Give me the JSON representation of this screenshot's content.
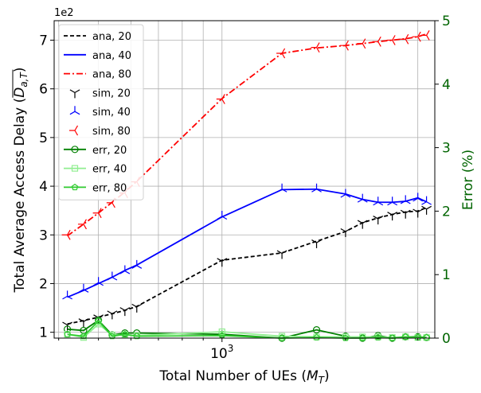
{
  "chart_data": {
    "type": "line",
    "xlabel": "Total Number of UEs (",
    "xlabel_sym": "M",
    "xlabel_sub": "T",
    "xlabel_end": ")",
    "ylabel": "Total Average Access Delay (",
    "ylabel_sym": "D",
    "ylabel_sub": "a,T",
    "ylabel_end": ")",
    "ylabel_right": "Error (%)",
    "y_offset_text": "1e2",
    "x_scale": "log",
    "xlim": [
      390,
      3300
    ],
    "ylim": [
      0.88,
      7.4
    ],
    "ylim_right": [
      0,
      5
    ],
    "x_tick_labels": [
      {
        "value": 1000,
        "base": "10",
        "exp": "3"
      }
    ],
    "y_ticks": [
      1,
      2,
      3,
      4,
      5,
      6,
      7
    ],
    "y_tick_labels": [
      "1",
      "2",
      "3",
      "4",
      "5",
      "6",
      "7"
    ],
    "y_right_ticks": [
      0,
      1,
      2,
      3,
      4,
      5
    ],
    "y_right_tick_labels": [
      "0",
      "1",
      "2",
      "3",
      "4",
      "5"
    ],
    "grid": true,
    "legend_position": "top-left",
    "x": [
      420,
      460,
      500,
      540,
      580,
      620,
      1000,
      1400,
      1700,
      2000,
      2200,
      2400,
      2600,
      2800,
      3000,
      3150
    ],
    "series": [
      {
        "name": "ana, 20",
        "axis": "left",
        "color": "#000000",
        "style": "dashed",
        "marker": "none",
        "values": [
          1.17,
          1.24,
          1.31,
          1.38,
          1.45,
          1.53,
          2.48,
          2.63,
          2.87,
          3.07,
          3.25,
          3.35,
          3.42,
          3.47,
          3.49,
          3.56
        ]
      },
      {
        "name": "ana, 40",
        "axis": "left",
        "color": "#0000ff",
        "style": "solid",
        "marker": "none",
        "values": [
          1.72,
          1.86,
          2.0,
          2.13,
          2.27,
          2.38,
          3.37,
          3.93,
          3.94,
          3.84,
          3.73,
          3.67,
          3.67,
          3.69,
          3.76,
          3.68
        ]
      },
      {
        "name": "ana, 80",
        "axis": "left",
        "color": "#ff0000",
        "style": "dashdot",
        "marker": "none",
        "values": [
          2.98,
          3.22,
          3.45,
          3.67,
          3.88,
          4.1,
          5.8,
          6.73,
          6.84,
          6.89,
          6.93,
          6.97,
          7.0,
          7.03,
          7.07,
          7.13
        ]
      },
      {
        "name": "sim, 20",
        "axis": "left",
        "color": "#000000",
        "style": "none",
        "marker": "tri_down",
        "values": [
          1.15,
          1.22,
          1.3,
          1.38,
          1.45,
          1.52,
          2.46,
          2.62,
          2.84,
          3.07,
          3.24,
          3.33,
          3.41,
          3.45,
          3.47,
          3.53
        ]
      },
      {
        "name": "sim, 40",
        "axis": "left",
        "color": "#0000ff",
        "style": "none",
        "marker": "tri_up",
        "values": [
          1.74,
          1.88,
          2.02,
          2.13,
          2.26,
          2.37,
          3.38,
          3.94,
          3.94,
          3.83,
          3.73,
          3.67,
          3.67,
          3.7,
          3.75,
          3.68
        ]
      },
      {
        "name": "sim, 80",
        "axis": "left",
        "color": "#ff0000",
        "style": "none",
        "marker": "tri_left",
        "values": [
          3.0,
          3.22,
          3.45,
          3.66,
          3.86,
          4.09,
          5.79,
          6.73,
          6.85,
          6.89,
          6.93,
          6.97,
          7.0,
          7.02,
          7.07,
          7.1
        ]
      },
      {
        "name": "err, 20",
        "axis": "right",
        "color": "#008000",
        "style": "solid",
        "marker": "circle",
        "values": [
          0.14,
          0.12,
          0.28,
          0.05,
          0.08,
          0.08,
          0.06,
          0.0,
          0.13,
          0.03,
          0.0,
          0.04,
          0.0,
          0.02,
          0.02,
          0.01
        ]
      },
      {
        "name": "err, 40",
        "axis": "right",
        "color": "#90ee90",
        "style": "solid",
        "marker": "square",
        "values": [
          0.06,
          0.01,
          0.22,
          0.05,
          0.05,
          0.04,
          0.1,
          0.03,
          0.02,
          0.02,
          0.02,
          0.02,
          0.01,
          0.02,
          0.01,
          0.01
        ]
      },
      {
        "name": "err, 80",
        "axis": "right",
        "color": "#32cd32",
        "style": "solid",
        "marker": "pentagon",
        "values": [
          0.06,
          0.03,
          0.27,
          0.03,
          0.06,
          0.03,
          0.04,
          0.0,
          0.01,
          0.0,
          0.0,
          0.01,
          0.0,
          0.02,
          0.01,
          0.01
        ]
      }
    ]
  }
}
